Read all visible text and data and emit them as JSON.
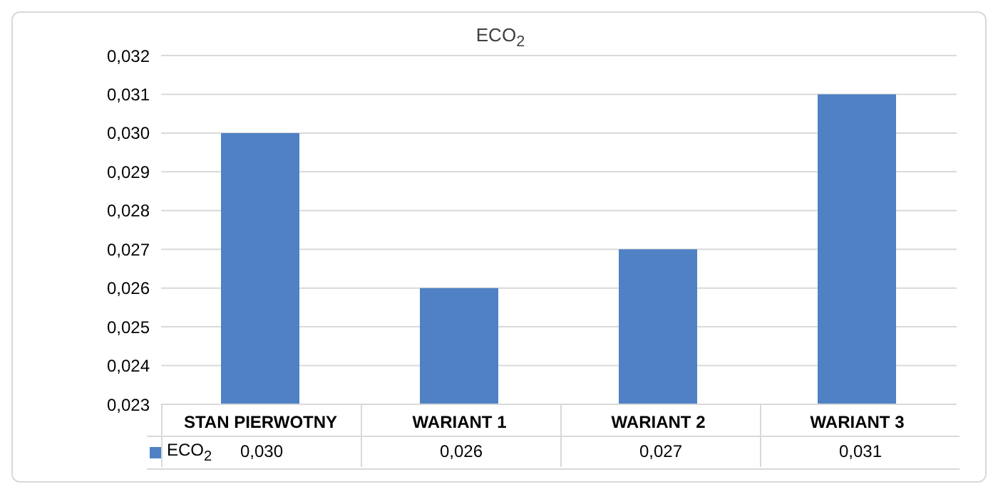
{
  "chart_data": {
    "type": "bar",
    "title": "ECO$_{2}$",
    "categories": [
      "STAN PIERWOTNY",
      "WARIANT 1",
      "WARIANT 2",
      "WARIANT 3"
    ],
    "series": [
      {
        "name": "ECO$_{2}$",
        "color": "#4f81c4",
        "values": [
          0.03,
          0.026,
          0.027,
          0.031
        ]
      }
    ],
    "ylim": [
      0.023,
      0.032
    ],
    "yticks": [
      {
        "value": 0.023,
        "label": "0,023"
      },
      {
        "value": 0.024,
        "label": "0,024"
      },
      {
        "value": 0.025,
        "label": "0,025"
      },
      {
        "value": 0.026,
        "label": "0,026"
      },
      {
        "value": 0.027,
        "label": "0,027"
      },
      {
        "value": 0.028,
        "label": "0,028"
      },
      {
        "value": 0.029,
        "label": "0,029"
      },
      {
        "value": 0.03,
        "label": "0,030"
      },
      {
        "value": 0.031,
        "label": "0,031"
      },
      {
        "value": 0.032,
        "label": "0,032"
      }
    ],
    "value_labels": [
      "0,030",
      "0,026",
      "0,027",
      "0,031"
    ],
    "grid": "y",
    "legend": "bottom"
  }
}
